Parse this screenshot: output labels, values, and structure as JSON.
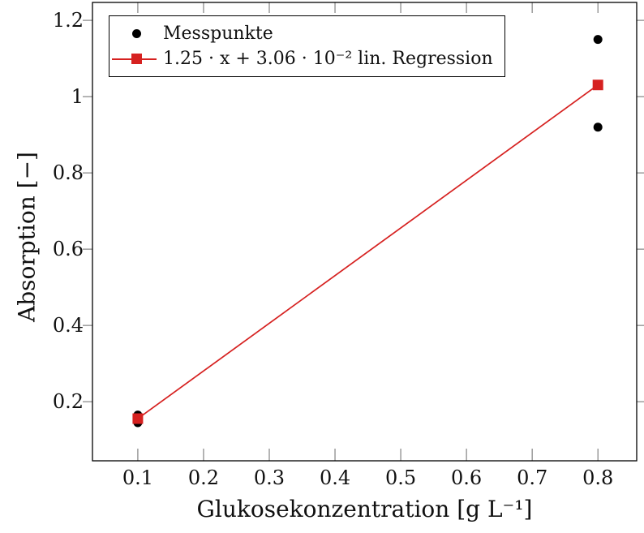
{
  "figure": {
    "background": "#ffffff",
    "frame_color": "#000000",
    "tick_color": "#777777"
  },
  "chart_data": {
    "type": "scatter",
    "title": "",
    "xlabel": "Glukosekonzentration [g L⁻¹]",
    "ylabel": "Absorption [−]",
    "xlim": [
      0.031,
      0.859
    ],
    "ylim": [
      0.045,
      1.247
    ],
    "grid": false,
    "xticks": {
      "values": [
        0.1,
        0.2,
        0.3,
        0.4,
        0.5,
        0.6,
        0.7,
        0.8
      ],
      "labels": [
        "0.1",
        "0.2",
        "0.3",
        "0.4",
        "0.5",
        "0.6",
        "0.7",
        "0.8"
      ]
    },
    "yticks": {
      "values": [
        0.2,
        0.4,
        0.6,
        0.8,
        1.0,
        1.2
      ],
      "labels": [
        "0.2",
        "0.4",
        "0.6",
        "0.8",
        "1",
        "1.2"
      ]
    },
    "legend": {
      "position": "top-left",
      "entries": [
        {
          "label": "Messpunkte",
          "marker": "circle",
          "color": "#000000",
          "line": false
        },
        {
          "label": "1.25 · x + 3.06 · 10⁻² lin. Regression",
          "marker": "square",
          "color": "#d62120",
          "line": true
        }
      ]
    },
    "series": [
      {
        "name": "Messpunkte",
        "type": "scatter",
        "marker": "circle",
        "marker_size": 11,
        "color": "#000000",
        "points": [
          [
            0.1,
            0.145
          ],
          [
            0.1,
            0.165
          ],
          [
            0.8,
            0.92
          ],
          [
            0.8,
            1.15
          ]
        ]
      },
      {
        "name": "lin. Regression",
        "type": "line",
        "marker": "square",
        "marker_size": 13,
        "color": "#d62120",
        "slope": 1.25,
        "intercept": 0.0306,
        "equation": "y = 1.25 · x + 3.06 · 10⁻²",
        "points": [
          [
            0.1,
            0.1556
          ],
          [
            0.8,
            1.0306
          ]
        ]
      }
    ]
  }
}
